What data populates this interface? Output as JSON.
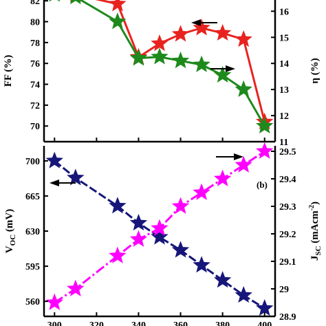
{
  "chart_data": [
    {
      "panel": "a",
      "type": "line",
      "panel_label": "",
      "x": [
        300,
        310,
        330,
        340,
        350,
        360,
        370,
        380,
        390,
        400
      ],
      "xlim": [
        295,
        405
      ],
      "ylabel_left": "FF (%)",
      "ylim_left": [
        68.5,
        83
      ],
      "yticks_left": [
        70,
        72,
        74,
        76,
        78,
        80,
        82
      ],
      "ylabel_right": "η (%)",
      "ylim_right": [
        11,
        16.8
      ],
      "yticks_right": [
        11,
        12,
        13,
        14,
        15,
        16
      ],
      "series": [
        {
          "axis": "left",
          "color": "#e8231f",
          "values": [
            82.8,
            82.6,
            81.7,
            76.6,
            77.9,
            78.8,
            79.4,
            78.9,
            78.3,
            70.4
          ],
          "arrow": "left"
        },
        {
          "axis": "right",
          "color": "#1e8a1c",
          "values": [
            16.65,
            16.55,
            15.6,
            14.2,
            14.25,
            14.1,
            13.95,
            13.55,
            13.0,
            11.6
          ],
          "arrow": "right"
        }
      ]
    },
    {
      "panel": "b",
      "type": "line",
      "panel_label": "(b)",
      "x": [
        300,
        310,
        330,
        340,
        350,
        360,
        370,
        380,
        390,
        400
      ],
      "xlim": [
        295,
        405
      ],
      "xticks": [
        300,
        320,
        340,
        360,
        380,
        400
      ],
      "ylabel_left": "V_OC (mV)",
      "ylim_left": [
        545,
        715
      ],
      "yticks_left": [
        560,
        595,
        630,
        665,
        700
      ],
      "ylabel_right": "J_SC (mAcm-2)",
      "ylim_right": [
        28.9,
        29.52
      ],
      "yticks_right": [
        28.9,
        29.0,
        29.1,
        29.2,
        29.3,
        29.4,
        29.5
      ],
      "series": [
        {
          "axis": "left",
          "color": "#16167a",
          "values": [
            700,
            683,
            655,
            638,
            624,
            611,
            596,
            581,
            566,
            553
          ],
          "arrow": "left"
        },
        {
          "axis": "right",
          "color": "#ff00ff",
          "values": [
            28.95,
            29.0,
            29.12,
            29.18,
            29.22,
            29.3,
            29.35,
            29.4,
            29.45,
            29.5
          ],
          "arrow": "right"
        }
      ]
    }
  ]
}
